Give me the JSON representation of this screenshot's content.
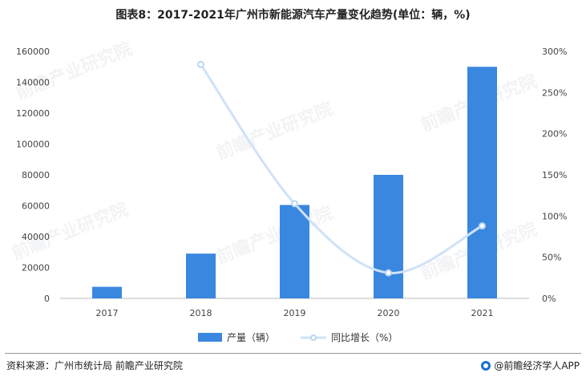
{
  "title": "图表8：2017-2021年广州市新能源汽车产量变化趋势(单位：辆，%)",
  "footer": {
    "source": "资料来源：广州市统计局 前瞻产业研究院",
    "brand": "@前瞻经济学人APP"
  },
  "watermark": "前瞻产业研究院",
  "colors": {
    "bar": "#3a87e0",
    "line": "#cfe2f7",
    "marker": "#b9d5f2"
  },
  "chart_data": {
    "type": "bar",
    "categories": [
      "2017",
      "2018",
      "2019",
      "2020",
      "2021"
    ],
    "series": [
      {
        "name": "产量（辆）",
        "type": "bar",
        "axis": "left",
        "values": [
          7500,
          29000,
          60500,
          80000,
          150000
        ]
      },
      {
        "name": "同比增长（%）",
        "type": "line",
        "axis": "right",
        "values": [
          null,
          284,
          115,
          31,
          88
        ]
      }
    ],
    "y_left": {
      "min": 0,
      "max": 160000,
      "step": 20000,
      "ticks": [
        "0",
        "20000",
        "40000",
        "60000",
        "80000",
        "100000",
        "120000",
        "140000",
        "160000"
      ]
    },
    "y_right": {
      "min": 0,
      "max": 300,
      "step": 50,
      "ticks": [
        "0%",
        "50%",
        "100%",
        "150%",
        "200%",
        "250%",
        "300%"
      ]
    },
    "legend_position": "bottom",
    "grid": false
  }
}
